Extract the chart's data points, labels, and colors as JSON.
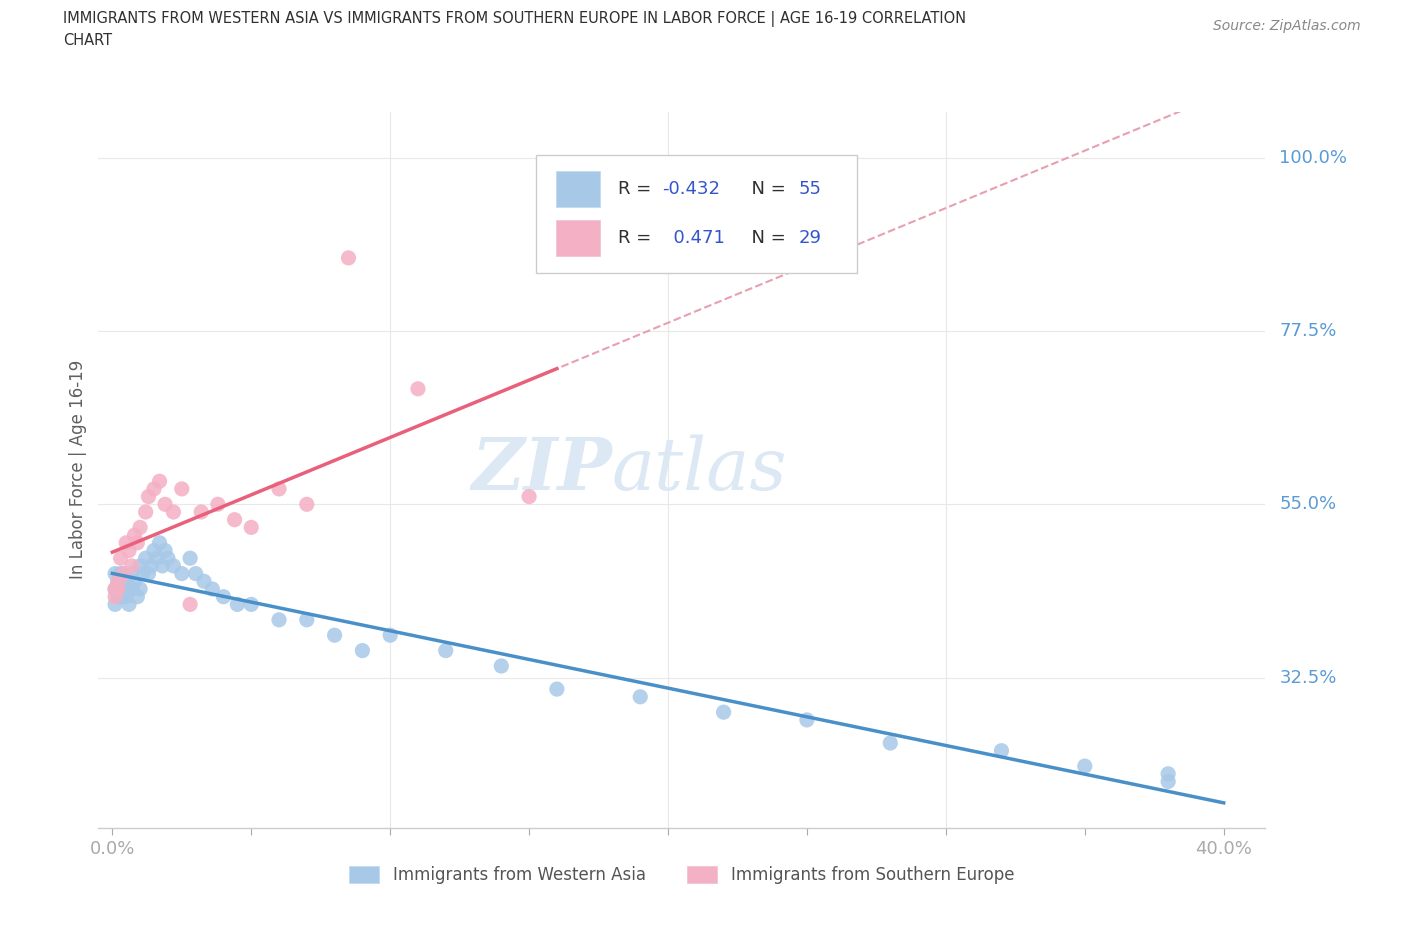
{
  "title_line1": "IMMIGRANTS FROM WESTERN ASIA VS IMMIGRANTS FROM SOUTHERN EUROPE IN LABOR FORCE | AGE 16-19 CORRELATION",
  "title_line2": "CHART",
  "source": "Source: ZipAtlas.com",
  "ylabel_label": "In Labor Force | Age 16-19",
  "y_ticks_labels": [
    "100.0%",
    "77.5%",
    "55.0%",
    "32.5%"
  ],
  "y_ticks_vals": [
    1.0,
    0.775,
    0.55,
    0.325
  ],
  "x_lim": [
    -0.005,
    0.415
  ],
  "y_lim": [
    0.13,
    1.06
  ],
  "watermark_line1": "ZIP",
  "watermark_line2": "atlas",
  "r_wa": -0.432,
  "n_wa": 55,
  "r_se": 0.471,
  "n_se": 29,
  "blue_dot_color": "#a8c8e8",
  "pink_dot_color": "#f4b0c4",
  "blue_line_color": "#4a90c8",
  "pink_line_color": "#e8607a",
  "dash_line_color": "#e8a0b0",
  "grid_color": "#e8e8e8",
  "title_color": "#303030",
  "source_color": "#888888",
  "y_tick_color": "#5b9bd5",
  "ylabel_color": "#606060",
  "x_tick_color": "#aaaaaa",
  "legend_border_color": "#cccccc",
  "wa_x": [
    0.001,
    0.001,
    0.001,
    0.002,
    0.002,
    0.002,
    0.003,
    0.003,
    0.004,
    0.004,
    0.005,
    0.005,
    0.006,
    0.006,
    0.007,
    0.007,
    0.008,
    0.009,
    0.01,
    0.01,
    0.011,
    0.012,
    0.013,
    0.014,
    0.015,
    0.016,
    0.017,
    0.018,
    0.019,
    0.02,
    0.022,
    0.025,
    0.028,
    0.03,
    0.033,
    0.036,
    0.04,
    0.045,
    0.05,
    0.06,
    0.07,
    0.08,
    0.09,
    0.1,
    0.12,
    0.14,
    0.16,
    0.19,
    0.22,
    0.25,
    0.28,
    0.32,
    0.35,
    0.38,
    0.38
  ],
  "wa_y": [
    0.44,
    0.42,
    0.46,
    0.45,
    0.43,
    0.44,
    0.46,
    0.43,
    0.44,
    0.46,
    0.43,
    0.45,
    0.44,
    0.42,
    0.46,
    0.44,
    0.45,
    0.43,
    0.47,
    0.44,
    0.46,
    0.48,
    0.46,
    0.47,
    0.49,
    0.48,
    0.5,
    0.47,
    0.49,
    0.48,
    0.47,
    0.46,
    0.48,
    0.46,
    0.45,
    0.44,
    0.43,
    0.42,
    0.42,
    0.4,
    0.4,
    0.38,
    0.36,
    0.38,
    0.36,
    0.34,
    0.31,
    0.3,
    0.28,
    0.27,
    0.24,
    0.23,
    0.21,
    0.19,
    0.2
  ],
  "se_x": [
    0.001,
    0.001,
    0.002,
    0.002,
    0.003,
    0.004,
    0.005,
    0.006,
    0.007,
    0.008,
    0.009,
    0.01,
    0.012,
    0.013,
    0.015,
    0.017,
    0.019,
    0.022,
    0.025,
    0.028,
    0.032,
    0.038,
    0.044,
    0.05,
    0.06,
    0.07,
    0.085,
    0.11,
    0.15
  ],
  "se_y": [
    0.44,
    0.43,
    0.45,
    0.44,
    0.48,
    0.46,
    0.5,
    0.49,
    0.47,
    0.51,
    0.5,
    0.52,
    0.54,
    0.56,
    0.57,
    0.58,
    0.55,
    0.54,
    0.57,
    0.42,
    0.54,
    0.55,
    0.53,
    0.52,
    0.57,
    0.55,
    0.87,
    0.7,
    0.56
  ]
}
